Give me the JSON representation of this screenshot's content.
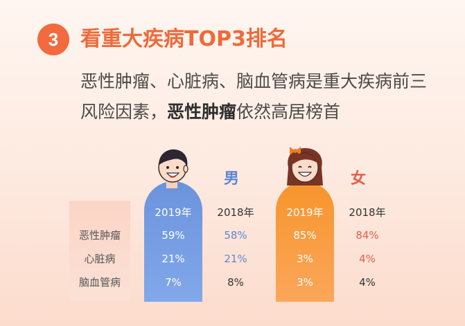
{
  "header": {
    "number": "3",
    "title": "看重大疾病TOP3排名",
    "subtitle_line1": "恶性肿瘤、心脏病、脑血管病是重大疾病前三",
    "subtitle_line2_prefix": "风险因素，",
    "subtitle_line2_bold": "恶性肿瘤",
    "subtitle_line2_suffix": "依然高居榜首"
  },
  "table": {
    "male_label": "男",
    "female_label": "女",
    "year_2019": "2019年",
    "year_2018": "2018年",
    "rows": [
      {
        "disease": "恶性肿瘤",
        "male_2019": "59%",
        "male_2018": "58%",
        "female_2019": "85%",
        "female_2018": "84%"
      },
      {
        "disease": "心脏病",
        "male_2019": "21%",
        "male_2018": "21%",
        "female_2019": "3%",
        "female_2018": "4%"
      },
      {
        "disease": "脑血管病",
        "male_2019": "7%",
        "male_2018": "8%",
        "female_2019": "3%",
        "female_2018": "4%"
      }
    ]
  },
  "colors": {
    "accent": "#ef6a3a",
    "male": "#6b93dd",
    "female": "#f7952c",
    "female_text": "#e3604a"
  }
}
